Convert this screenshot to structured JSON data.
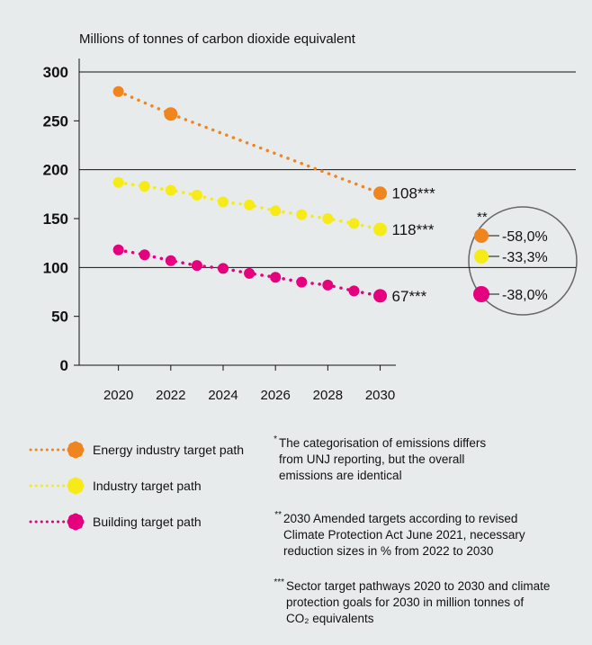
{
  "chart_data": {
    "type": "line",
    "y_axis_label": "Millions of tonnes of carbon dioxide equivalent",
    "xlim": [
      2018.5,
      2030.6
    ],
    "xticks": [
      2020,
      2022,
      2024,
      2026,
      2028,
      2030
    ],
    "ylim": [
      0,
      300
    ],
    "yticks": [
      0,
      50,
      100,
      150,
      200,
      250,
      300
    ],
    "grid": true,
    "series": [
      {
        "name": "Energy industry target path",
        "color": "#f0841e",
        "x": [
          2020,
          2022,
          2030
        ],
        "values": [
          280,
          257,
          176
        ],
        "end_label": "108***",
        "reduction": "-58,0%"
      },
      {
        "name": "Industry target path",
        "color": "#f6eb16",
        "x": [
          2020,
          2021,
          2022,
          2023,
          2024,
          2025,
          2026,
          2027,
          2028,
          2029,
          2030
        ],
        "values": [
          187,
          183,
          179,
          174,
          167,
          164,
          158,
          154,
          150,
          145,
          139
        ],
        "end_label": "118***",
        "reduction": "-33,3%"
      },
      {
        "name": "Building target path",
        "color": "#e5007d",
        "x": [
          2020,
          2021,
          2022,
          2023,
          2024,
          2025,
          2026,
          2027,
          2028,
          2029,
          2030
        ],
        "values": [
          118,
          113,
          107,
          102,
          99,
          94,
          90,
          85,
          82,
          76,
          71
        ],
        "end_label": "67***",
        "reduction": "-38,0%"
      }
    ],
    "reduction_mark": "**",
    "footnotes": [
      {
        "mark": "*",
        "lines": [
          "The categorisation of emissions differs",
          "from UNJ reporting, but the overall",
          "emissions are identical"
        ]
      },
      {
        "mark": "**",
        "lines": [
          "2030 Amended targets according to revised",
          "Climate Protection Act June 2021, necessary",
          "reduction sizes in % from 2022 to 2030"
        ]
      },
      {
        "mark": "***",
        "lines": [
          "Sector target pathways 2020 to 2030 and climate",
          "protection goals for 2030 in million tonnes of",
          "CO₂ equivalents"
        ]
      }
    ]
  }
}
